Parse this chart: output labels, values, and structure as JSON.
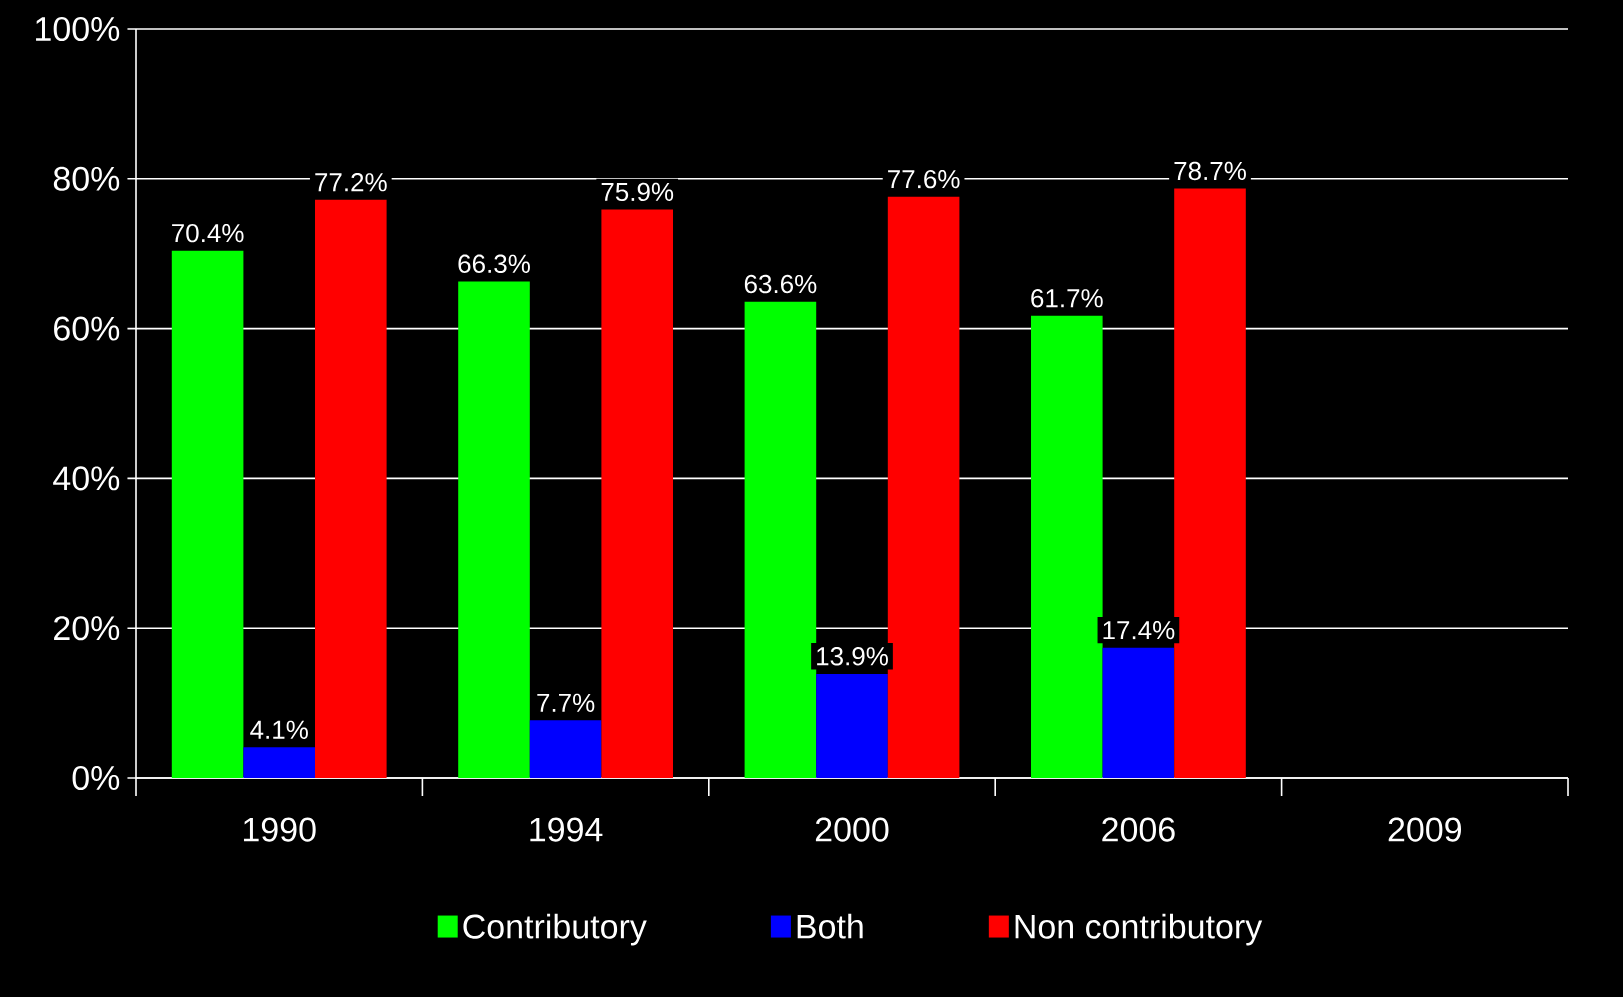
{
  "chart_data": {
    "type": "bar",
    "categories": [
      "1990",
      "1994",
      "2000",
      "2006",
      "2009"
    ],
    "series": [
      {
        "name": "Contributory",
        "color": "#00ff00",
        "values": [
          70.4,
          66.3,
          63.6,
          61.7,
          null
        ],
        "value_labels": [
          "70.4%",
          "66.3%",
          "63.6%",
          "61.7%",
          null
        ]
      },
      {
        "name": "Both",
        "color": "#0000ff",
        "values": [
          4.1,
          7.7,
          13.9,
          17.4,
          null
        ],
        "value_labels": [
          "4.1%",
          "7.7%",
          "13.9%",
          "17.4%",
          null
        ]
      },
      {
        "name": "Non contributory",
        "color": "#ff0000",
        "values": [
          77.2,
          75.9,
          77.6,
          78.7,
          null
        ],
        "value_labels": [
          "77.2%",
          "75.9%",
          "77.6%",
          "78.7%",
          null
        ]
      }
    ],
    "ylim": [
      0,
      100
    ],
    "yticks": [
      {
        "value": 0,
        "label": "0%"
      },
      {
        "value": 20,
        "label": "20%"
      },
      {
        "value": 40,
        "label": "40%"
      },
      {
        "value": 60,
        "label": "60%"
      },
      {
        "value": 80,
        "label": "80%"
      },
      {
        "value": 100,
        "label": "100%"
      }
    ],
    "grid": "y",
    "legend": "bottom"
  }
}
